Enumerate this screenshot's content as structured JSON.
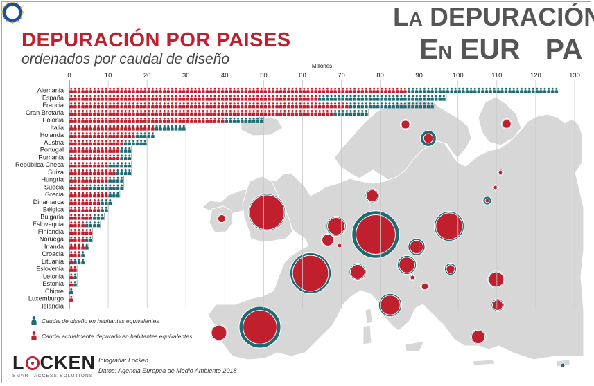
{
  "header": {
    "title": "DEPURACIÓN POR PAISES",
    "subtitle": "ordenados por caudal de diseño"
  },
  "brand": {
    "line1_a": "L",
    "line1_b": "A",
    "line1_c": " DEPURACIÓN",
    "line2_a": "E",
    "line2_b": "N",
    "line2_c": " EUR",
    "line2_d": "PA"
  },
  "chart_data": {
    "type": "bar",
    "orientation": "horizontal",
    "axis_title": "Millones",
    "xlim": [
      0,
      130
    ],
    "ticks": [
      "0",
      "10",
      "20",
      "30",
      "40",
      "50",
      "60",
      "70",
      "80",
      "90",
      "100",
      "110",
      "120",
      "130"
    ],
    "grid": true,
    "categories": [
      "Alemania",
      "España",
      "Francia",
      "Gran Bretaña",
      "Polonia",
      "Italia",
      "Holanda",
      "Austria",
      "Portugal",
      "Rumania",
      "República Checa",
      "Suiza",
      "Hungría",
      "Suecia",
      "Grecia",
      "Dinamarca",
      "Bélgica",
      "Bulgaria",
      "Eslovaquia",
      "Finlandia",
      "Noruega",
      "Irlanda",
      "Croacia",
      "Lituania",
      "Eslovenia",
      "Letonia",
      "Estonia",
      "Chipre",
      "Luxemburgo",
      "Islandia"
    ],
    "series": [
      {
        "name": "Caudal de diseño en habitantes equivalentes",
        "color": "#1f6b73",
        "values": [
          126,
          97,
          94,
          77,
          50,
          30,
          22,
          20,
          16,
          16,
          16,
          16,
          14,
          14,
          13,
          11,
          10,
          9,
          8,
          6,
          6,
          5,
          4,
          4,
          2,
          2,
          2,
          1,
          1,
          0
        ]
      },
      {
        "name": "Caudal actualmente depurado en habitantes equivalentes",
        "color": "#c0202e",
        "values": [
          87,
          64,
          72,
          68,
          40,
          22,
          17,
          14,
          13,
          13,
          10,
          12,
          10,
          5,
          10,
          8,
          8,
          6,
          4,
          6,
          4,
          4,
          3,
          1,
          2,
          1,
          1,
          0,
          1,
          0
        ]
      }
    ]
  },
  "map": {
    "bubbles": [
      {
        "country": "España",
        "design": 97,
        "treated": 64
      },
      {
        "country": "Francia",
        "design": 94,
        "treated": 72
      },
      {
        "country": "Alemania",
        "design": 126,
        "treated": 87
      },
      {
        "country": "Gran Bretaña",
        "design": 77,
        "treated": 68
      },
      {
        "country": "Polonia",
        "design": 50,
        "treated": 40
      },
      {
        "country": "Italia",
        "design": 30,
        "treated": 22
      },
      {
        "country": "Holanda",
        "design": 22,
        "treated": 17
      },
      {
        "country": "Portugal",
        "design": 16,
        "treated": 13
      },
      {
        "country": "Rumania",
        "design": 16,
        "treated": 13
      },
      {
        "country": "Suiza",
        "design": 16,
        "treated": 12
      },
      {
        "country": "República Checa",
        "design": 16,
        "treated": 10
      },
      {
        "country": "Austria",
        "design": 20,
        "treated": 14
      },
      {
        "country": "Grecia",
        "design": 13,
        "treated": 10
      },
      {
        "country": "Bulgaria",
        "design": 9,
        "treated": 6
      },
      {
        "country": "Dinamarca",
        "design": 11,
        "treated": 8
      },
      {
        "country": "Bélgica",
        "design": 10,
        "treated": 8
      },
      {
        "country": "Suecia",
        "design": 14,
        "treated": 5
      },
      {
        "country": "Finlandia",
        "design": 6,
        "treated": 6
      },
      {
        "country": "Noruega",
        "design": 6,
        "treated": 4
      },
      {
        "country": "Irlanda",
        "design": 5,
        "treated": 4
      },
      {
        "country": "Eslovaquia",
        "design": 8,
        "treated": 4
      },
      {
        "country": "Croacia",
        "design": 4,
        "treated": 3
      },
      {
        "country": "Eslovenia",
        "design": 2,
        "treated": 2
      },
      {
        "country": "Lituania",
        "design": 4,
        "treated": 1
      },
      {
        "country": "Letonia",
        "design": 2,
        "treated": 1
      },
      {
        "country": "Estonia",
        "design": 2,
        "treated": 1
      },
      {
        "country": "Luxemburgo",
        "design": 1,
        "treated": 1
      },
      {
        "country": "Chipre",
        "design": 1,
        "treated": 0
      }
    ]
  },
  "legend": {
    "design_label": "Caudal de diseño en habitantes equivalentes",
    "treated_label": "Caudal actualmente depurado en habitantes equivalentes"
  },
  "footer": {
    "logo_l": "L",
    "logo_rest": "CKEN",
    "logo_tagline": "SMART ACCESS SOLUTIONS",
    "credit": "Infografía: Locken",
    "source": "Datos: Agencia Europea de Medio Ambiente 2018"
  },
  "colors": {
    "design": "#1f6b73",
    "treated": "#c0202e",
    "map_land": "#d7d7d7",
    "eu_star": "#f2c200"
  }
}
